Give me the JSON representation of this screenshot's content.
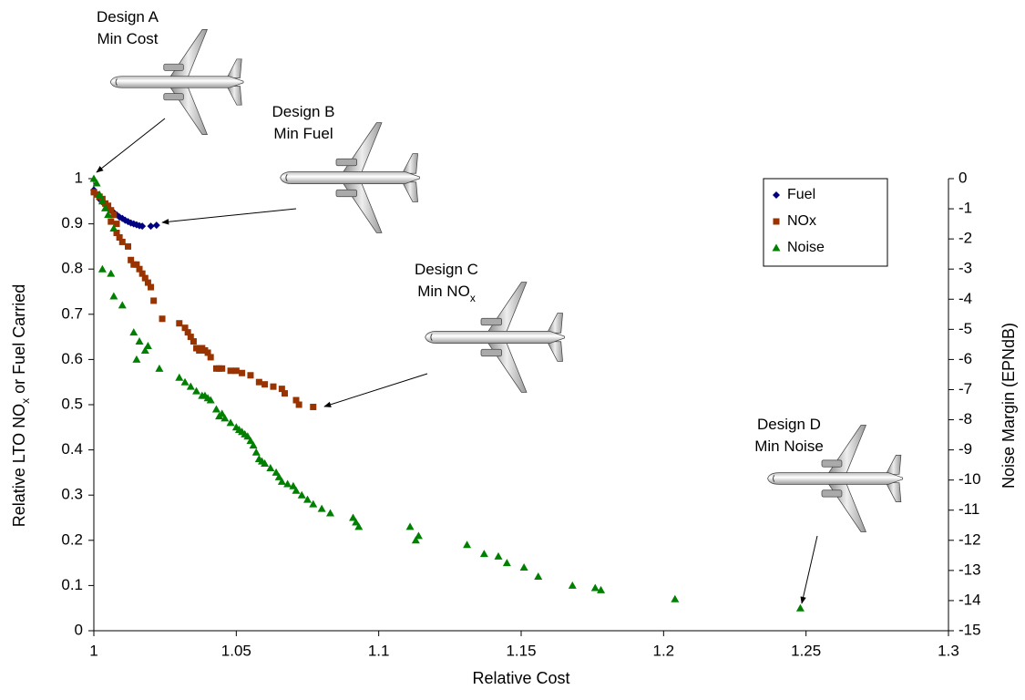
{
  "chart_data": {
    "type": "scatter",
    "xlabel": "Relative Cost",
    "ylabel_parts": [
      "Relative LTO NO",
      "x",
      " or Fuel Carried"
    ],
    "y2label": "Noise Margin (EPNdB)",
    "xlim": [
      1,
      1.3
    ],
    "xticks": [
      1,
      1.05,
      1.1,
      1.15,
      1.2,
      1.25,
      1.3
    ],
    "ylim": [
      0,
      1
    ],
    "yticks": [
      0,
      0.1,
      0.2,
      0.3,
      0.4,
      0.5,
      0.6,
      0.7,
      0.8,
      0.9,
      1
    ],
    "y2lim": [
      -15,
      0
    ],
    "y2ticks": [
      -15,
      -14,
      -13,
      -12,
      -11,
      -10,
      -9,
      -8,
      -7,
      -6,
      -5,
      -4,
      -3,
      -2,
      -1,
      0
    ],
    "grid": false,
    "legend": "upper right",
    "series": [
      {
        "name": "Fuel",
        "color": "#000080",
        "marker": "diamond",
        "x": [
          1.0,
          1.001,
          1.002,
          1.003,
          1.004,
          1.005,
          1.006,
          1.007,
          1.008,
          1.009,
          1.01,
          1.011,
          1.012,
          1.013,
          1.014,
          1.015,
          1.016,
          1.017,
          1.02,
          1.022
        ],
        "values": [
          0.975,
          0.965,
          0.955,
          0.948,
          0.942,
          0.935,
          0.93,
          0.925,
          0.92,
          0.915,
          0.912,
          0.908,
          0.905,
          0.902,
          0.9,
          0.898,
          0.896,
          0.895,
          0.895,
          0.897
        ]
      },
      {
        "name": "NOx",
        "color": "#993300",
        "marker": "square",
        "x": [
          1.0,
          1.001,
          1.002,
          1.003,
          1.004,
          1.005,
          1.006,
          1.007,
          1.006,
          1.008,
          1.008,
          1.009,
          1.01,
          1.012,
          1.013,
          1.014,
          1.015,
          1.016,
          1.017,
          1.018,
          1.019,
          1.02,
          1.021,
          1.024,
          1.03,
          1.032,
          1.033,
          1.034,
          1.035,
          1.036,
          1.037,
          1.038,
          1.039,
          1.04,
          1.041,
          1.043,
          1.044,
          1.045,
          1.048,
          1.05,
          1.052,
          1.055,
          1.058,
          1.06,
          1.063,
          1.066,
          1.067,
          1.071,
          1.072,
          1.077
        ],
        "values": [
          0.97,
          0.965,
          0.96,
          0.955,
          0.945,
          0.94,
          0.93,
          0.92,
          0.905,
          0.9,
          0.88,
          0.87,
          0.86,
          0.85,
          0.82,
          0.81,
          0.81,
          0.8,
          0.79,
          0.78,
          0.77,
          0.76,
          0.73,
          0.69,
          0.68,
          0.67,
          0.66,
          0.65,
          0.64,
          0.625,
          0.62,
          0.625,
          0.62,
          0.615,
          0.605,
          0.58,
          0.58,
          0.58,
          0.575,
          0.575,
          0.57,
          0.565,
          0.55,
          0.545,
          0.54,
          0.535,
          0.525,
          0.51,
          0.5,
          0.495
        ]
      },
      {
        "name": "Noise",
        "color": "#008000",
        "marker": "triangle",
        "axis": "y2",
        "x": [
          1.0,
          1.001,
          1.002,
          1.003,
          1.004,
          1.005,
          1.007,
          1.003,
          1.006,
          1.007,
          1.01,
          1.014,
          1.016,
          1.019,
          1.018,
          1.015,
          1.023,
          1.03,
          1.032,
          1.034,
          1.036,
          1.038,
          1.039,
          1.04,
          1.041,
          1.043,
          1.044,
          1.045,
          1.046,
          1.048,
          1.05,
          1.051,
          1.052,
          1.053,
          1.054,
          1.055,
          1.056,
          1.057,
          1.058,
          1.059,
          1.06,
          1.062,
          1.064,
          1.065,
          1.066,
          1.068,
          1.07,
          1.071,
          1.073,
          1.075,
          1.077,
          1.08,
          1.083,
          1.091,
          1.092,
          1.093,
          1.111,
          1.113,
          1.114,
          1.131,
          1.137,
          1.142,
          1.145,
          1.151,
          1.156,
          1.168,
          1.176,
          1.178,
          1.204,
          1.248
        ],
        "values": [
          0,
          -0.15,
          -0.53,
          -0.75,
          -0.98,
          -1.2,
          -1.65,
          -3,
          -3.15,
          -3.9,
          -4.2,
          -5.1,
          -5.4,
          -5.55,
          -5.7,
          -6,
          -6.3,
          -6.6,
          -6.75,
          -6.9,
          -7.05,
          -7.2,
          -7.2,
          -7.28,
          -7.35,
          -7.65,
          -7.88,
          -7.8,
          -7.95,
          -8.1,
          -8.25,
          -8.33,
          -8.4,
          -8.48,
          -8.55,
          -8.7,
          -8.85,
          -9.08,
          -9.3,
          -9.38,
          -9.45,
          -9.6,
          -9.75,
          -9.9,
          -10.05,
          -10.13,
          -10.2,
          -10.35,
          -10.5,
          -10.65,
          -10.8,
          -10.95,
          -11.1,
          -11.25,
          -11.4,
          -11.55,
          -11.55,
          -12,
          -11.85,
          -12.15,
          -12.45,
          -12.53,
          -12.75,
          -12.9,
          -13.2,
          -13.5,
          -13.58,
          -13.65,
          -13.95,
          -14.25
        ]
      }
    ],
    "annotations": [
      {
        "lines": [
          "Design A",
          "Min Cost"
        ]
      },
      {
        "lines": [
          "Design B",
          "Min Fuel"
        ]
      },
      {
        "lines": [
          "Design C",
          "Min NO"
        ],
        "subscript": "x"
      },
      {
        "lines": [
          "Design D",
          "Min Noise"
        ]
      }
    ]
  }
}
